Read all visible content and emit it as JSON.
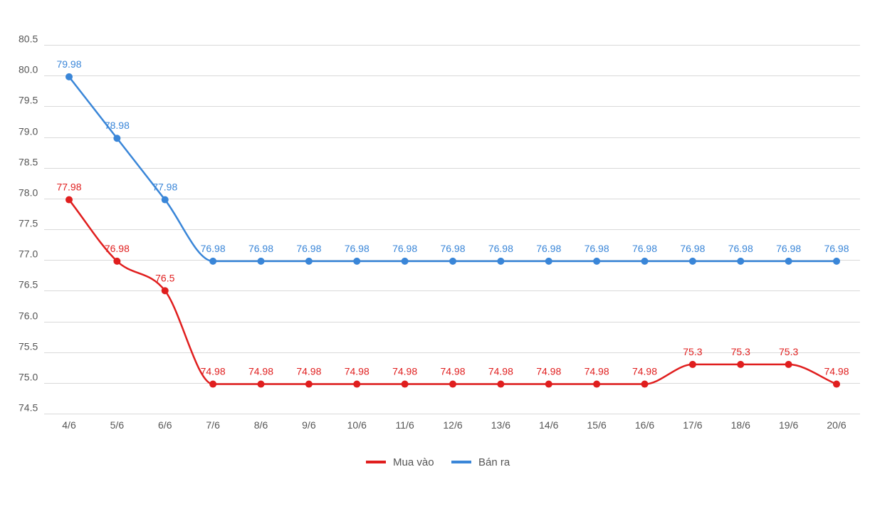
{
  "chart_data": {
    "type": "line",
    "title": "",
    "xlabel": "",
    "ylabel": "",
    "categories": [
      "4/6",
      "5/6",
      "6/6",
      "7/6",
      "8/6",
      "9/6",
      "10/6",
      "11/6",
      "12/6",
      "13/6",
      "14/6",
      "15/6",
      "16/6",
      "17/6",
      "18/6",
      "19/6",
      "20/6"
    ],
    "ylim": [
      74.5,
      80.5
    ],
    "yticks": [
      "74.5",
      "75.0",
      "75.5",
      "76.0",
      "76.5",
      "77.0",
      "77.5",
      "78.0",
      "78.5",
      "79.0",
      "79.5",
      "80.0",
      "80.5"
    ],
    "grid": true,
    "legend_position": "bottom-center",
    "series": [
      {
        "name": "Mua vào",
        "color": "#e01e1e",
        "values": [
          77.98,
          76.98,
          76.5,
          74.98,
          74.98,
          74.98,
          74.98,
          74.98,
          74.98,
          74.98,
          74.98,
          74.98,
          74.98,
          75.3,
          75.3,
          75.3,
          74.98
        ],
        "labels": [
          "77.98",
          "76.98",
          "76.5",
          "74.98",
          "74.98",
          "74.98",
          "74.98",
          "74.98",
          "74.98",
          "74.98",
          "74.98",
          "74.98",
          "74.98",
          "75.3",
          "75.3",
          "75.3",
          "74.98"
        ]
      },
      {
        "name": "Bán ra",
        "color": "#3a86d8",
        "values": [
          79.98,
          78.98,
          77.98,
          76.98,
          76.98,
          76.98,
          76.98,
          76.98,
          76.98,
          76.98,
          76.98,
          76.98,
          76.98,
          76.98,
          76.98,
          76.98,
          76.98
        ],
        "labels": [
          "79.98",
          "78.98",
          "77.98",
          "76.98",
          "76.98",
          "76.98",
          "76.98",
          "76.98",
          "76.98",
          "76.98",
          "76.98",
          "76.98",
          "76.98",
          "76.98",
          "76.98",
          "76.98",
          "76.98"
        ]
      }
    ]
  }
}
